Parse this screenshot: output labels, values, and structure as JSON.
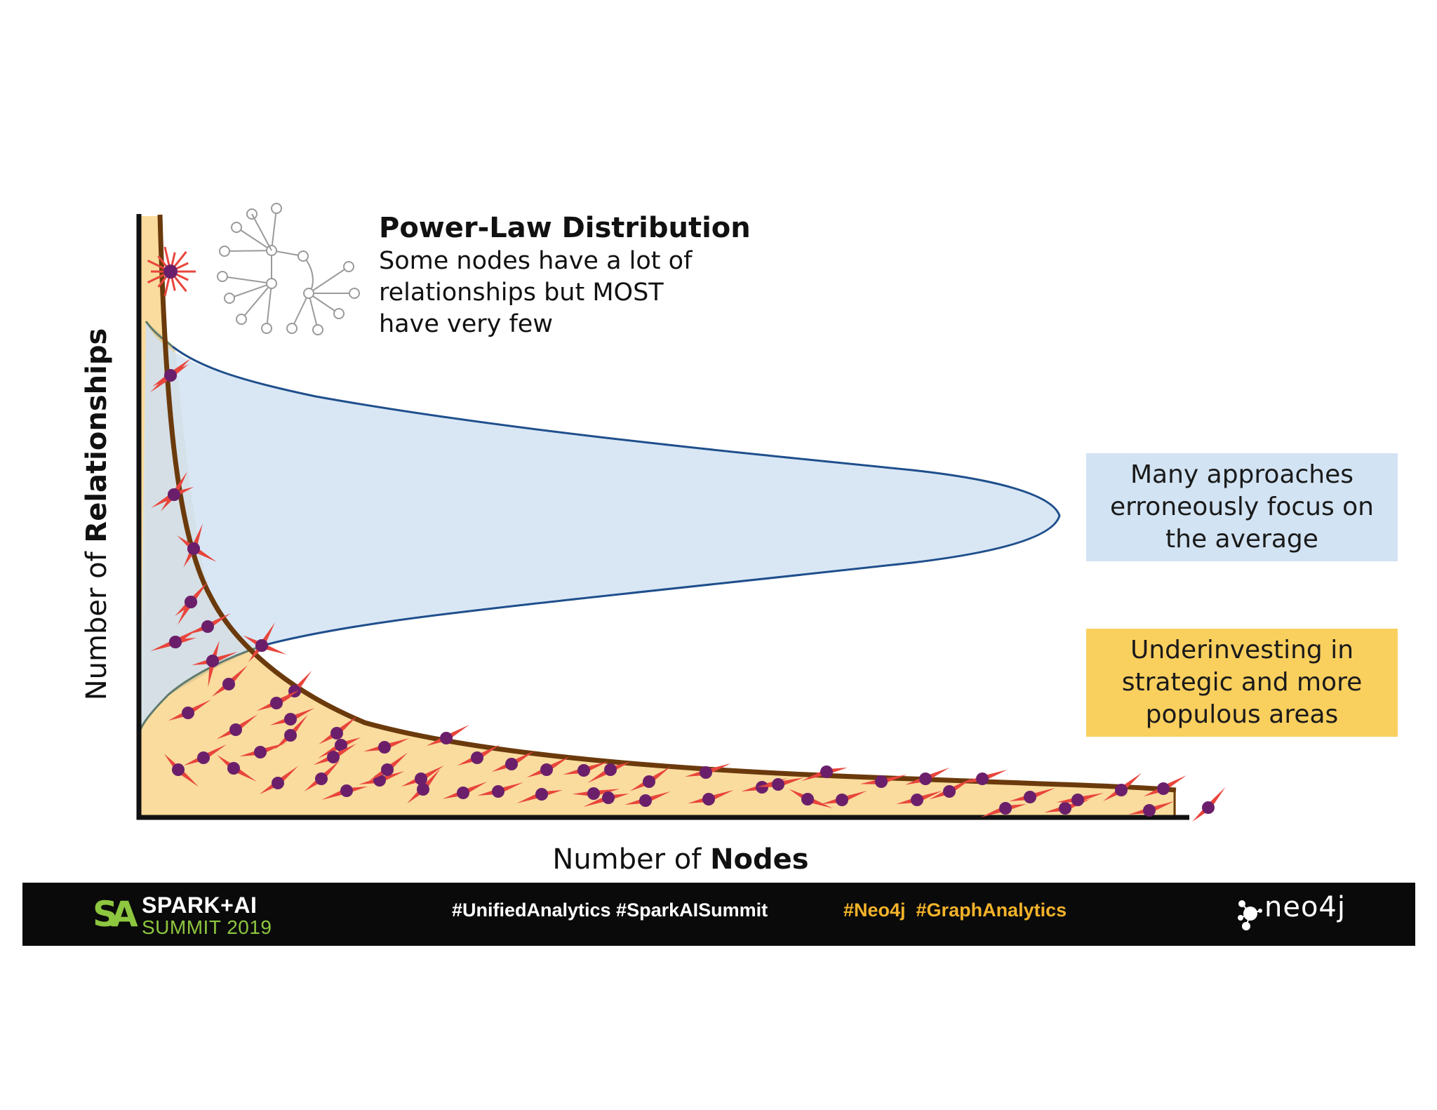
{
  "title": "Power-Law Distribution",
  "subtitle_lines": [
    "Some nodes have a lot of",
    "relationships but MOST",
    "have very few"
  ],
  "y_axis": {
    "prefix": "Number of ",
    "bold": "Relationships"
  },
  "x_axis": {
    "prefix": "Number of ",
    "bold": "Nodes"
  },
  "callout_average": [
    "Many approaches",
    "erroneously focus on",
    "the average"
  ],
  "callout_underinvesting": [
    "Underinvesting in",
    "strategic and more",
    "populous areas"
  ],
  "footer": {
    "logo_mark": "SA",
    "logo_top": "SPARK+AI",
    "logo_bottom": "SUMMIT 2019",
    "hashtags_left": "#UnifiedAnalytics #SparkAISummit",
    "hashtags_right": "#Neo4j  #GraphAnalytics",
    "partner": "neo4j"
  },
  "colors": {
    "power_law_fill": "#f9dc9e",
    "power_law_stroke": "#6b3a0c",
    "normal_fill": "#d2e3f3",
    "normal_stroke": "#1f4f8c",
    "node_dot": "#6b1f6b",
    "spike": "#e8453c",
    "callout_blue": "#d2e3f3",
    "callout_yellow": "#f9cf5e",
    "footer_bg": "#0a0a0a",
    "spark_green": "#8dc63f",
    "hashtag_yellow": "#f3b32a"
  },
  "icons": [
    "network-graph-icon",
    "neo4j-logo-icon",
    "spark-ai-logo"
  ]
}
